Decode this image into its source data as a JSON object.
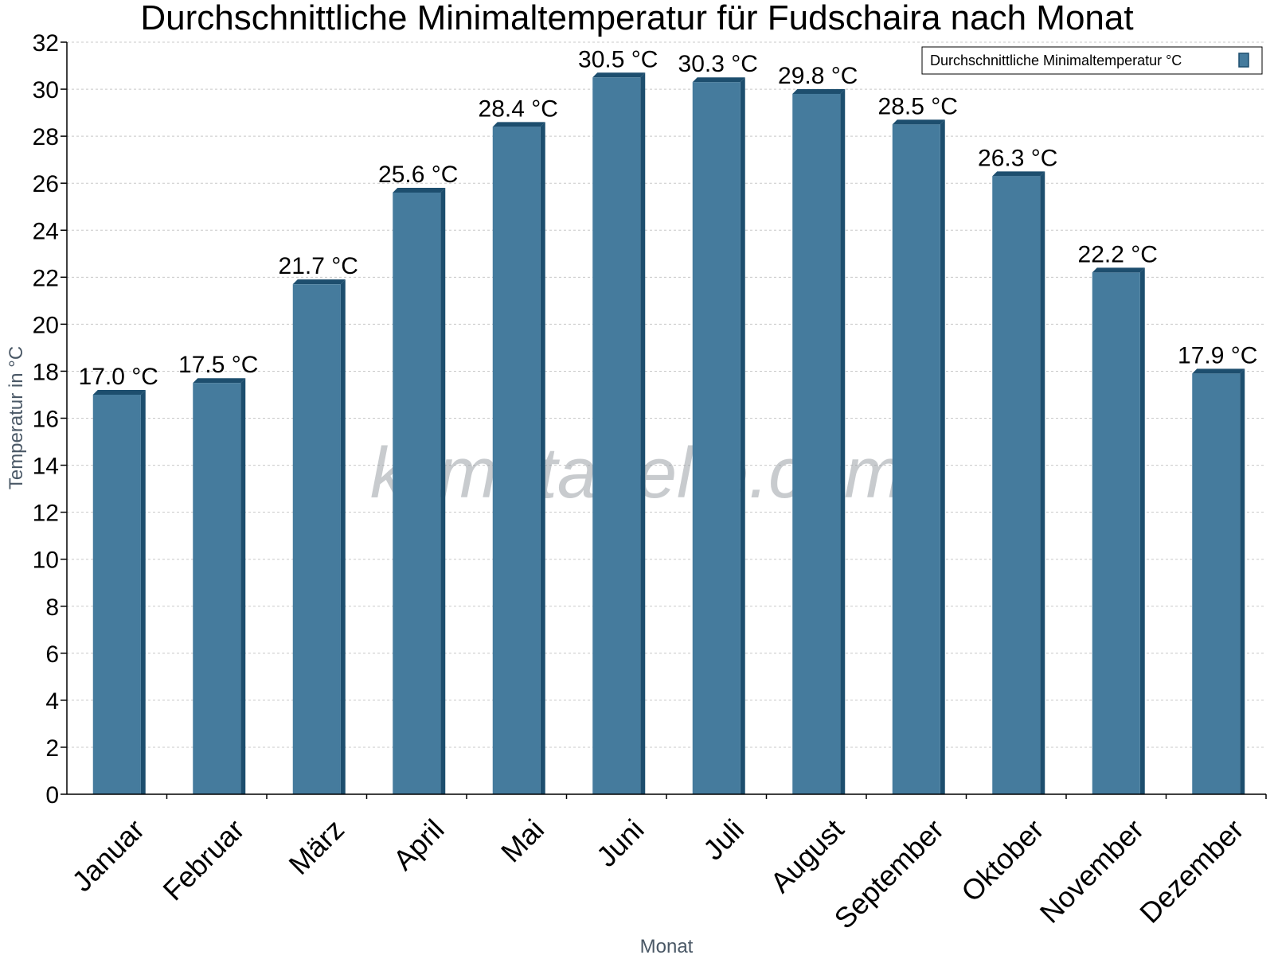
{
  "watermark": "klimatabelle.com",
  "colors": {
    "bar_front": "#457b9d",
    "bar_side": "#1d4e6e",
    "bar_top": "#1d4e6e",
    "grid": "#c8c8c8",
    "axis": "#000000",
    "axis_title": "#4a5866"
  },
  "chart_data": {
    "type": "bar",
    "title": "Durchschnittliche Minimaltemperatur für Fudschaira nach Monat",
    "xlabel": "Monat",
    "ylabel": "Temperatur in °C",
    "categories": [
      "Januar",
      "Februar",
      "März",
      "April",
      "Mai",
      "Juni",
      "Juli",
      "August",
      "September",
      "Oktober",
      "November",
      "Dezember"
    ],
    "series": [
      {
        "name": "Durchschnittliche Minimaltemperatur °C",
        "values": [
          17.0,
          17.5,
          21.7,
          25.6,
          28.4,
          30.5,
          30.3,
          29.8,
          28.5,
          26.3,
          22.2,
          17.9
        ]
      }
    ],
    "data_labels": [
      "17.0 °C",
      "17.5 °C",
      "21.7 °C",
      "25.6 °C",
      "28.4 °C",
      "30.5 °C",
      "30.3 °C",
      "29.8 °C",
      "28.5 °C",
      "26.3 °C",
      "22.2 °C",
      "17.9 °C"
    ],
    "yticks": [
      "0",
      "2",
      "4",
      "6",
      "8",
      "10",
      "12",
      "14",
      "16",
      "18",
      "20",
      "22",
      "24",
      "26",
      "28",
      "30",
      "32"
    ],
    "ylim": [
      0,
      32
    ],
    "grid": true,
    "legend_position": "top-right"
  }
}
